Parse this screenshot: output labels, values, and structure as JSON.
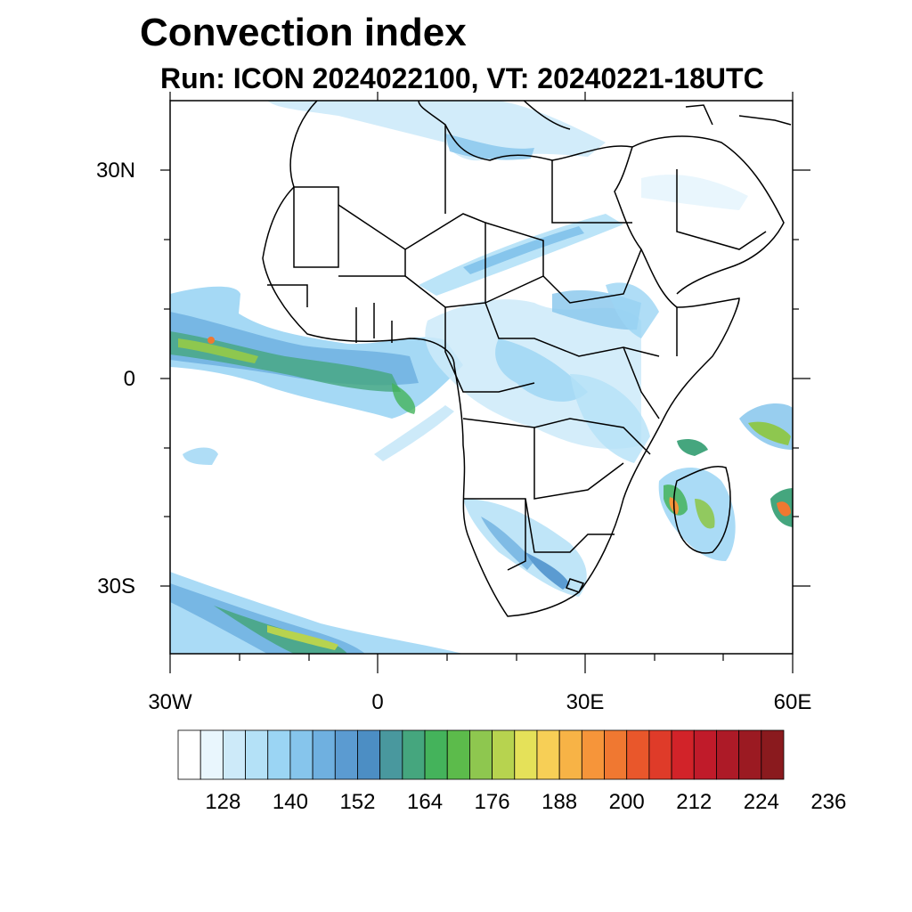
{
  "title": "Convection index",
  "subtitle": "Run: ICON 2024022100,  VT: 20240221-18UTC",
  "axes": {
    "lat_labels": [
      {
        "label": "30N",
        "value": 30
      },
      {
        "label": "0",
        "value": 0
      },
      {
        "label": "30S",
        "value": -30
      }
    ],
    "lon_labels": [
      {
        "label": "30W",
        "value": -30
      },
      {
        "label": "0",
        "value": 0
      },
      {
        "label": "30E",
        "value": 30
      },
      {
        "label": "60E",
        "value": 60
      }
    ],
    "lon_range": [
      -30,
      60
    ],
    "lat_range": [
      -40,
      40
    ]
  },
  "colorbar": {
    "colors": [
      "#ffffff",
      "#e9f6fd",
      "#cdeaf9",
      "#b4e1f7",
      "#9bd5f4",
      "#86c5ec",
      "#6fb0e0",
      "#5b9bd1",
      "#4c8ec4",
      "#49989e",
      "#45a67e",
      "#44b35b",
      "#5cbb4b",
      "#8ec74f",
      "#b7d34f",
      "#e5e159",
      "#f7cf56",
      "#f7b346",
      "#f6953a",
      "#f07831",
      "#e9572b",
      "#df3b29",
      "#d22329",
      "#c01b2a",
      "#ad1a27",
      "#9b1a22",
      "#8a1a1e"
    ],
    "tick_labels": [
      "128",
      "140",
      "152",
      "164",
      "176",
      "188",
      "200",
      "212",
      "224",
      "236"
    ]
  }
}
